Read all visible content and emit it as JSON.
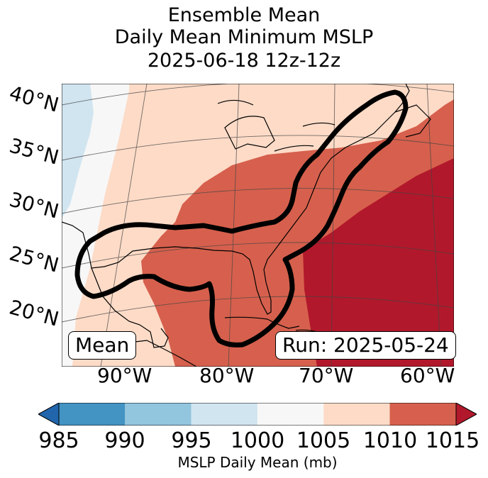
{
  "title": {
    "line1": "Ensemble Mean",
    "line2": "Daily Mean Minimum MSLP",
    "line3": "2025-06-18 12z-12z"
  },
  "map": {
    "lat_labels": [
      "40°N",
      "35°N",
      "30°N",
      "25°N",
      "20°N"
    ],
    "lon_labels": [
      "90°W",
      "80°W",
      "70°W",
      "60°W"
    ],
    "mean_box": "Mean",
    "run_box": "Run: 2025-05-24",
    "fill_colors": {
      "c995_1000": "#d1e5f0",
      "c1000_1005": "#f7f7f7",
      "c1005_1010": "#fddbc7",
      "c1010_1015": "#d6604d",
      "c1015_plus": "#b2182b"
    },
    "outline_color": "#000000"
  },
  "colorbar": {
    "ticks": [
      "985",
      "990",
      "995",
      "1000",
      "1005",
      "1010",
      "1015"
    ],
    "label": "MSLP Daily Mean (mb)",
    "under_color": "#2166ac",
    "over_color": "#b2182b",
    "bins": [
      {
        "range": "985-990",
        "color": "#4393c3"
      },
      {
        "range": "990-995",
        "color": "#92c5de"
      },
      {
        "range": "995-1000",
        "color": "#d1e5f0"
      },
      {
        "range": "1000-1005",
        "color": "#f7f7f7"
      },
      {
        "range": "1005-1010",
        "color": "#fddbc7"
      },
      {
        "range": "1010-1015",
        "color": "#d6604d"
      }
    ]
  }
}
